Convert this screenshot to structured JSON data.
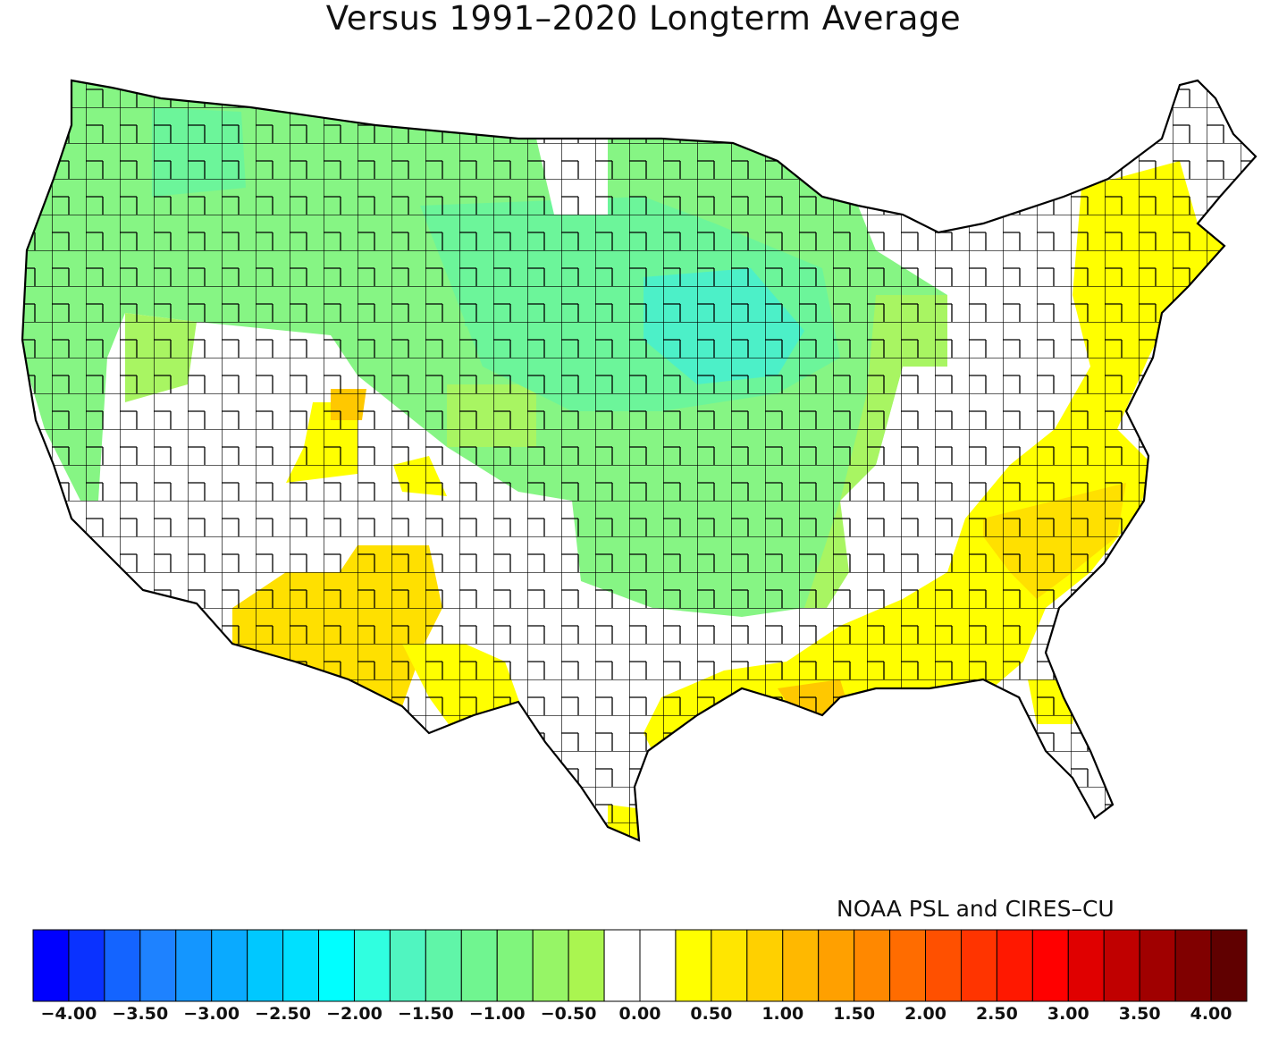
{
  "title": "Versus 1991–2020 Longterm Average",
  "credit": "NOAA PSL and CIRES–CU",
  "colors": {
    "strong_neg": "#4cf0c8",
    "mid_neg": "#6cf59a",
    "weak_neg": "#86f584",
    "light_neg": "#a8f562",
    "neutral": "#ffffff",
    "weak_pos": "#ffff00",
    "mid_pos": "#ffe000",
    "strong_pos": "#ffc800",
    "border": "#000000"
  },
  "colorbar": {
    "colors": [
      "#0000ff",
      "#0a32ff",
      "#1464ff",
      "#1e82ff",
      "#1496ff",
      "#0aaaff",
      "#00c8ff",
      "#00e0ff",
      "#00ffff",
      "#30ffe0",
      "#50f5c0",
      "#60f5a8",
      "#70f590",
      "#80f57c",
      "#96f566",
      "#aaf550",
      "#ffffff",
      "#ffffff",
      "#ffff00",
      "#ffe600",
      "#ffd000",
      "#ffb800",
      "#ffa000",
      "#ff8800",
      "#ff6c00",
      "#ff5000",
      "#ff3400",
      "#ff1800",
      "#ff0000",
      "#e00000",
      "#c00000",
      "#a00000",
      "#800000",
      "#600000"
    ],
    "tick_labels": [
      "−4.00",
      "−3.50",
      "−3.00",
      "−2.50",
      "−2.00",
      "−1.50",
      "−1.00",
      "−0.50",
      "0.00",
      "0.50",
      "1.00",
      "1.50",
      "2.00",
      "2.50",
      "3.00",
      "3.50",
      "4.00"
    ],
    "tick_values": [
      -4.0,
      -3.5,
      -3.0,
      -2.5,
      -2.0,
      -1.5,
      -1.0,
      -0.5,
      0.0,
      0.5,
      1.0,
      1.5,
      2.0,
      2.5,
      3.0,
      3.5,
      4.0
    ],
    "range": [
      -4.25,
      4.25
    ]
  }
}
